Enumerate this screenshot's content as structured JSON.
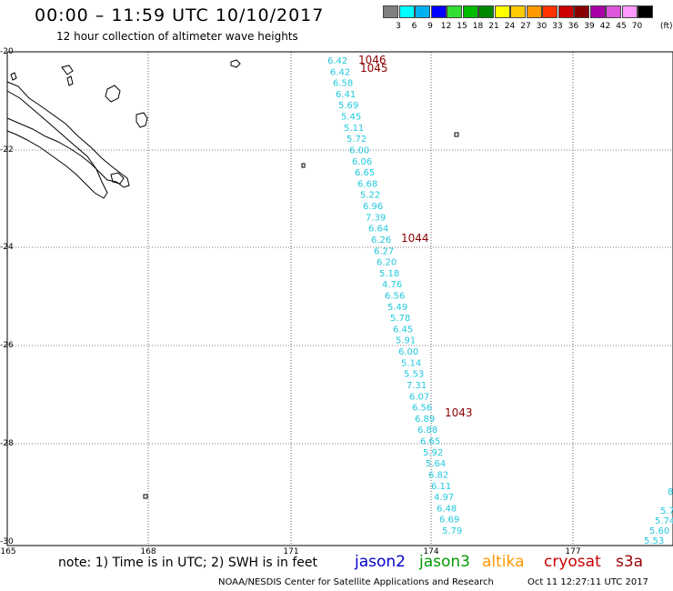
{
  "header": {
    "title": "00:00 – 11:59 UTC 10/10/2017",
    "subtitle": "12 hour collection of altimeter wave heights"
  },
  "legend": {
    "unit": "(ft)",
    "bins": [
      {
        "label": "3",
        "color": "#808080"
      },
      {
        "label": "6",
        "color": "#00ffff"
      },
      {
        "label": "9",
        "color": "#00b0f0"
      },
      {
        "label": "12",
        "color": "#0000ff"
      },
      {
        "label": "15",
        "color": "#33dd33"
      },
      {
        "label": "18",
        "color": "#00bb00"
      },
      {
        "label": "21",
        "color": "#008800"
      },
      {
        "label": "24",
        "color": "#ffff00"
      },
      {
        "label": "27",
        "color": "#ffcc00"
      },
      {
        "label": "30",
        "color": "#ff9900"
      },
      {
        "label": "33",
        "color": "#ff3300"
      },
      {
        "label": "36",
        "color": "#cc0000"
      },
      {
        "label": "39",
        "color": "#880000"
      },
      {
        "label": "42",
        "color": "#aa00aa"
      },
      {
        "label": "45",
        "color": "#dd55dd"
      },
      {
        "label": "70",
        "color": "#ff99ff"
      },
      {
        "label": "",
        "color": "#000000"
      }
    ]
  },
  "axes": {
    "lat_labels": [
      "-20",
      "-22",
      "-24",
      "-26",
      "-28",
      "-30"
    ],
    "lon_labels": [
      "165",
      "168",
      "171",
      "174",
      "177"
    ]
  },
  "tracks": {
    "main_values": [
      "6.42",
      "6.42",
      "6.58",
      "6.41",
      "5.69",
      "5.45",
      "5.11",
      "5.72",
      "6.00",
      "6.06",
      "6.65",
      "6.68",
      "5.22",
      "6.96",
      "7.39",
      "6.64",
      "6.26",
      "6.27",
      "6.20",
      "5.18",
      "4.76",
      "6.56",
      "5.49",
      "5.78",
      "6.45",
      "5.91",
      "6.00",
      "5.14",
      "5.53",
      "7.31",
      "6.07",
      "6.56",
      "6.89",
      "6.88",
      "6.65",
      "5.92",
      "5.64",
      "6.82",
      "6.11",
      "4.97",
      "6.48",
      "6.69",
      "5.79"
    ],
    "east_values": [
      "8",
      "5.7",
      "5.74",
      "5.60",
      "5.53"
    ],
    "orbit_labels": [
      "1046",
      "1045",
      "1044",
      "1043"
    ]
  },
  "footer": {
    "note": "note: 1) Time is in UTC; 2) SWH is in feet",
    "satellites": [
      {
        "name": "jason2",
        "color": "#0000cc"
      },
      {
        "name": "jason3",
        "color": "#009900"
      },
      {
        "name": "altika",
        "color": "#ff9900"
      },
      {
        "name": "cryosat",
        "color": "#cc0000"
      },
      {
        "name": "s3a",
        "color": "#990000"
      }
    ],
    "credit": "NOAA/NESDIS Center for Satellite Applications and Research",
    "timestamp": "Oct 11 12:27:11 UTC 2017"
  }
}
